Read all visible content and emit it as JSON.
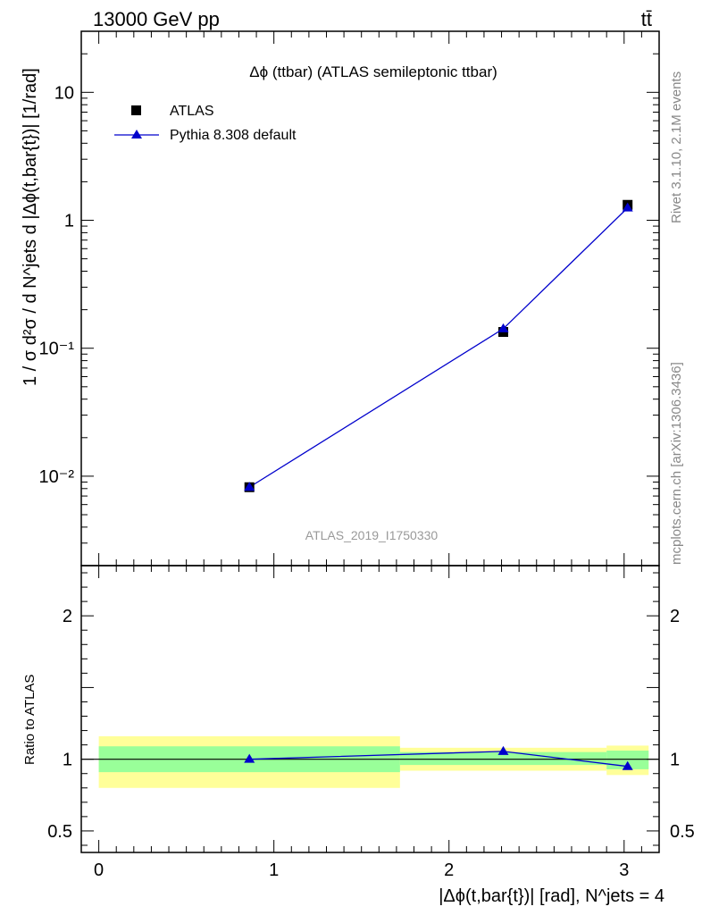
{
  "header": {
    "left": "13000 GeV pp",
    "right": "tt̄"
  },
  "side_labels": {
    "rivet": "Rivet 3.1.10,  2.1M events",
    "source": "mcplots.cern.ch [arXiv:1306.3436]"
  },
  "chart_data": [
    {
      "type": "scatter",
      "title": "Δϕ (ttbar) (ATLAS semileptonic ttbar)",
      "ylabel": "1 / σ d²σ / d N^jets d |Δϕ(t,bar{t})| [1/rad]",
      "y_scale": "log",
      "ylim": [
        0.002,
        30
      ],
      "xlim": [
        -0.1,
        3.2
      ],
      "y_ticks": [
        "10⁻²",
        "10⁻¹",
        "1",
        "10"
      ],
      "watermark": "ATLAS_2019_I1750330",
      "legend_position": "top-left",
      "series": [
        {
          "name": "ATLAS",
          "color": "#000000",
          "marker": "square",
          "x": [
            0.86,
            2.31,
            3.02
          ],
          "y": [
            0.0082,
            0.134,
            1.32
          ]
        },
        {
          "name": "Pythia 8.308 default",
          "color": "#0000cc",
          "marker": "triangle",
          "x": [
            0.86,
            2.31,
            3.02
          ],
          "y": [
            0.0082,
            0.142,
            1.25
          ]
        }
      ]
    },
    {
      "type": "scatter",
      "ylabel": "Ratio to ATLAS",
      "xlabel": "|Δϕ(t,bar{t})| [rad], N^jets = 4",
      "ylim": [
        0.35,
        2.35
      ],
      "xlim": [
        -0.1,
        3.2
      ],
      "x_ticks": [
        0,
        1,
        2,
        3
      ],
      "y_ticks": [
        0.5,
        1,
        2
      ],
      "bands": [
        {
          "x": [
            0,
            1.72
          ],
          "inner": [
            0.91,
            1.09
          ],
          "outer": [
            0.8,
            1.16
          ]
        },
        {
          "x": [
            1.72,
            2.9
          ],
          "inner": [
            0.96,
            1.05
          ],
          "outer": [
            0.92,
            1.08
          ]
        },
        {
          "x": [
            2.9,
            3.14
          ],
          "inner": [
            0.93,
            1.06
          ],
          "outer": [
            0.89,
            1.095
          ]
        }
      ],
      "series": [
        {
          "name": "Pythia 8.308 default",
          "color": "#0000cc",
          "marker": "triangle",
          "x": [
            0.86,
            2.31,
            3.02
          ],
          "y": [
            1.0,
            1.055,
            0.95
          ]
        }
      ]
    }
  ]
}
